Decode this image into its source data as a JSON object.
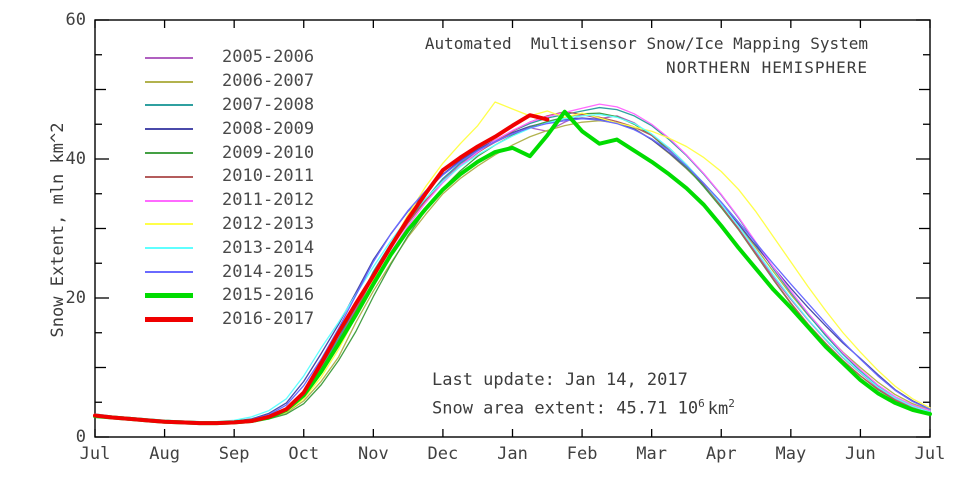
{
  "chart_data": {
    "type": "line",
    "title": "Automated  Multisensor Snow/Ice Mapping System",
    "subtitle": "NORTHERN HEMISPHERE",
    "ylabel": "Snow Extent, mln km^2",
    "ylim": [
      0,
      60
    ],
    "y_major_ticks": [
      0,
      20,
      40,
      60
    ],
    "y_minor_step": 5,
    "x_tick_labels": [
      "Jul",
      "Aug",
      "Sep",
      "Oct",
      "Nov",
      "Dec",
      "Jan",
      "Feb",
      "Mar",
      "Apr",
      "May",
      "Jun",
      "Jul"
    ],
    "x_axis_note": "one year, July through July; series values sampled every 0.25 month",
    "t_start": 0,
    "t_step": 0.25,
    "grid": false,
    "legend_position": "upper-left",
    "series": [
      {
        "name": "2005-2006",
        "color": "#b060c0",
        "thick": false,
        "values": [
          3.2,
          2.9,
          2.7,
          2.5,
          2.3,
          2.2,
          2.1,
          2.1,
          2.2,
          2.4,
          2.9,
          4.0,
          6.5,
          10.0,
          14.0,
          18.5,
          23.5,
          27.5,
          31.0,
          34.0,
          37.0,
          39.3,
          41.0,
          42.4,
          43.6,
          44.5,
          44.0,
          45.3,
          46.4,
          45.8,
          46.2,
          45.2,
          43.4,
          41.4,
          39.0,
          36.2,
          33.2,
          30.0,
          26.5,
          23.0,
          19.8,
          16.8,
          14.0,
          11.4,
          9.2,
          7.1,
          5.5,
          4.4,
          3.6
        ]
      },
      {
        "name": "2006-2007",
        "color": "#b2b24e",
        "thick": false,
        "values": [
          3.1,
          2.9,
          2.7,
          2.5,
          2.3,
          2.2,
          2.1,
          2.1,
          2.2,
          2.3,
          2.7,
          3.5,
          5.2,
          8.0,
          11.5,
          16.5,
          21.0,
          25.0,
          28.8,
          32.0,
          35.0,
          37.2,
          39.0,
          40.6,
          42.0,
          43.2,
          44.1,
          44.8,
          45.3,
          45.5,
          45.2,
          44.4,
          42.8,
          40.8,
          38.6,
          36.2,
          33.5,
          30.5,
          27.2,
          23.8,
          20.5,
          17.5,
          14.8,
          12.2,
          10.0,
          7.9,
          6.1,
          4.8,
          3.9
        ]
      },
      {
        "name": "2007-2008",
        "color": "#2fa0a0",
        "thick": false,
        "values": [
          3.3,
          3.0,
          2.8,
          2.6,
          2.4,
          2.3,
          2.2,
          2.2,
          2.3,
          2.5,
          3.0,
          4.1,
          6.6,
          10.2,
          14.2,
          18.8,
          23.8,
          27.8,
          31.2,
          34.2,
          37.2,
          39.4,
          41.2,
          42.7,
          44.0,
          45.1,
          45.9,
          46.4,
          46.9,
          47.4,
          47.1,
          46.2,
          44.8,
          42.8,
          40.5,
          37.8,
          34.8,
          31.5,
          27.8,
          24.2,
          20.8,
          17.6,
          14.6,
          11.9,
          9.5,
          7.4,
          5.7,
          4.5,
          3.7
        ]
      },
      {
        "name": "2008-2009",
        "color": "#4a4aaa",
        "thick": false,
        "values": [
          3.2,
          2.9,
          2.7,
          2.5,
          2.3,
          2.2,
          2.1,
          2.1,
          2.3,
          2.6,
          3.4,
          4.9,
          8.0,
          12.0,
          16.2,
          20.8,
          25.5,
          29.2,
          32.5,
          35.2,
          37.8,
          39.8,
          41.4,
          42.7,
          43.8,
          44.7,
          45.3,
          45.7,
          45.9,
          45.7,
          45.2,
          44.3,
          42.8,
          40.9,
          38.7,
          36.2,
          33.5,
          30.6,
          27.5,
          24.4,
          21.4,
          18.6,
          16.0,
          13.5,
          11.3,
          9.0,
          6.8,
          5.2,
          4.0
        ]
      },
      {
        "name": "2009-2010",
        "color": "#44a044",
        "thick": false,
        "values": [
          3.1,
          2.9,
          2.7,
          2.5,
          2.3,
          2.2,
          2.1,
          2.1,
          2.2,
          2.3,
          2.6,
          3.3,
          4.8,
          7.5,
          11.0,
          15.2,
          20.2,
          24.8,
          29.0,
          32.6,
          35.8,
          38.3,
          40.4,
          42.0,
          43.4,
          44.6,
          45.4,
          46.0,
          46.5,
          46.6,
          46.1,
          45.0,
          43.4,
          41.2,
          38.8,
          36.0,
          33.0,
          29.8,
          26.2,
          22.6,
          19.2,
          16.2,
          13.4,
          10.9,
          8.8,
          6.8,
          5.3,
          4.2,
          3.5
        ]
      },
      {
        "name": "2010-2011",
        "color": "#b45c5c",
        "thick": false,
        "values": [
          3.2,
          2.9,
          2.7,
          2.5,
          2.3,
          2.2,
          2.1,
          2.1,
          2.2,
          2.4,
          2.9,
          4.1,
          6.6,
          9.8,
          13.8,
          18.2,
          23.0,
          27.2,
          30.8,
          34.0,
          36.8,
          39.0,
          40.9,
          42.5,
          44.0,
          45.3,
          46.2,
          46.8,
          46.4,
          46.0,
          45.4,
          44.6,
          43.4,
          41.6,
          39.2,
          36.4,
          33.2,
          29.9,
          26.3,
          22.7,
          19.3,
          16.2,
          13.5,
          11.0,
          8.8,
          6.9,
          5.3,
          4.2,
          3.5
        ]
      },
      {
        "name": "2011-2012",
        "color": "#ff6aff",
        "thick": false,
        "values": [
          3.0,
          2.8,
          2.6,
          2.4,
          2.3,
          2.2,
          2.1,
          2.1,
          2.2,
          2.4,
          2.8,
          3.8,
          5.9,
          9.2,
          13.0,
          17.4,
          22.2,
          26.6,
          30.4,
          33.7,
          36.6,
          39.0,
          41.0,
          42.7,
          44.1,
          45.3,
          46.1,
          46.7,
          47.3,
          47.9,
          47.5,
          46.5,
          45.0,
          43.0,
          40.6,
          37.9,
          34.9,
          31.6,
          28.0,
          24.4,
          21.0,
          17.8,
          14.9,
          12.1,
          9.7,
          7.5,
          5.8,
          4.6,
          3.8
        ]
      },
      {
        "name": "2012-2013",
        "color": "#ffff4a",
        "thick": false,
        "values": [
          3.1,
          2.9,
          2.7,
          2.5,
          2.3,
          2.2,
          2.1,
          2.1,
          2.2,
          2.3,
          2.7,
          3.6,
          5.5,
          8.6,
          12.6,
          17.4,
          22.6,
          27.6,
          32.0,
          36.0,
          39.4,
          42.2,
          44.8,
          48.2,
          47.2,
          46.2,
          46.9,
          46.0,
          46.6,
          45.9,
          45.2,
          44.6,
          44.0,
          43.0,
          41.8,
          40.2,
          38.2,
          35.6,
          32.4,
          28.8,
          25.2,
          21.6,
          18.2,
          15.0,
          12.2,
          9.6,
          7.3,
          5.5,
          4.2
        ]
      },
      {
        "name": "2013-2014",
        "color": "#5fffff",
        "thick": false,
        "values": [
          3.3,
          3.0,
          2.8,
          2.6,
          2.4,
          2.3,
          2.2,
          2.2,
          2.4,
          2.9,
          3.8,
          5.5,
          8.8,
          12.8,
          16.5,
          20.5,
          24.5,
          28.2,
          31.5,
          34.3,
          36.8,
          38.9,
          40.6,
          42.0,
          43.3,
          44.4,
          45.2,
          45.8,
          46.2,
          46.4,
          46.0,
          45.1,
          43.6,
          41.6,
          39.2,
          36.5,
          33.5,
          30.3,
          26.8,
          23.3,
          20.0,
          16.9,
          14.1,
          11.5,
          9.3,
          7.2,
          5.6,
          4.4,
          3.6
        ]
      },
      {
        "name": "2014-2015",
        "color": "#6a6aff",
        "thick": false,
        "values": [
          3.2,
          2.9,
          2.7,
          2.5,
          2.3,
          2.2,
          2.1,
          2.1,
          2.2,
          2.5,
          3.2,
          4.6,
          7.4,
          11.2,
          15.6,
          20.4,
          25.2,
          29.2,
          32.6,
          35.4,
          37.7,
          39.6,
          41.2,
          42.5,
          43.6,
          44.5,
          45.1,
          45.5,
          45.8,
          45.6,
          45.1,
          44.2,
          42.9,
          41.2,
          39.0,
          36.5,
          33.8,
          30.9,
          27.9,
          24.9,
          22.0,
          19.2,
          16.4,
          13.7,
          11.2,
          8.8,
          6.7,
          5.1,
          4.0
        ]
      },
      {
        "name": "2015-2016",
        "color": "#00dc00",
        "thick": true,
        "values": [
          3.0,
          2.8,
          2.6,
          2.4,
          2.2,
          2.1,
          2.0,
          2.0,
          2.1,
          2.3,
          2.8,
          3.9,
          6.0,
          9.4,
          13.4,
          17.6,
          22.0,
          26.2,
          29.8,
          32.8,
          35.6,
          37.8,
          39.6,
          41.0,
          41.6,
          40.4,
          43.4,
          46.8,
          44.0,
          42.2,
          42.8,
          41.2,
          39.6,
          37.8,
          35.8,
          33.4,
          30.4,
          27.2,
          24.2,
          21.2,
          18.6,
          15.8,
          13.0,
          10.6,
          8.2,
          6.3,
          4.9,
          3.9,
          3.3
        ]
      },
      {
        "name": "2016-2017",
        "color": "#f00000",
        "thick": true,
        "values": [
          3.1,
          2.8,
          2.6,
          2.4,
          2.2,
          2.1,
          2.0,
          2.0,
          2.1,
          2.3,
          2.9,
          4.0,
          6.4,
          10.6,
          15.0,
          19.2,
          23.2,
          27.4,
          31.4,
          35.0,
          38.4,
          40.2,
          41.8,
          43.2,
          44.8,
          46.3,
          45.7
        ]
      }
    ]
  },
  "annotations": {
    "last_update": "Last update: Jan 14, 2017",
    "extent_prefix": "Snow area extent: 45.71 10",
    "extent_exponent": "6",
    "extent_unit": "km",
    "extent_unit_exponent": "2"
  },
  "colors": {
    "axis": "#000000",
    "text": "#3c3c3c",
    "background": "#ffffff"
  }
}
